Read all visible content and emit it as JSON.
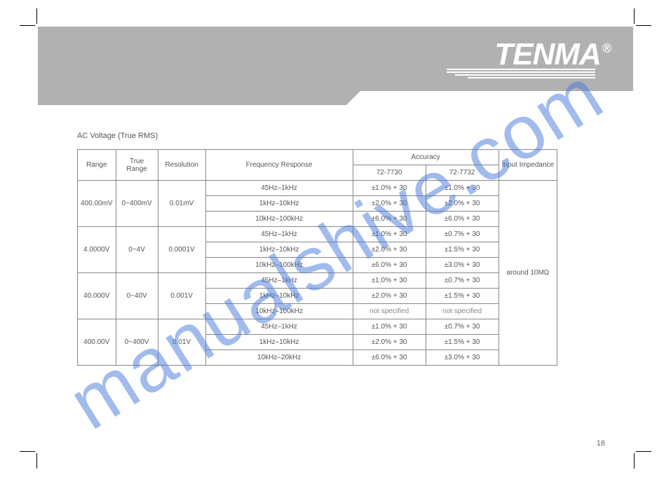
{
  "brand": {
    "name": "TENMA",
    "reg": "®"
  },
  "section_title": "AC Voltage (True RMS)",
  "page_number": "16",
  "watermark": "manualshive.com",
  "colors": {
    "header_gray": "#b1b1b1",
    "border": "#888888",
    "text": "#555555",
    "watermark": "rgba(70,120,220,0.5)"
  },
  "table": {
    "head": {
      "range": "Range",
      "true_range": "True Range",
      "resolution": "Resolution",
      "freq": "Frequency Response",
      "acc1": "Accuracy",
      "acc2": "Accuracy",
      "imp": "Input Impedance"
    },
    "subhead": {
      "a": "72-7730",
      "b": "72-7732"
    },
    "groups": [
      {
        "range": "400.00mV",
        "true_range": "0~400mV",
        "res": "0.01mV",
        "rows": [
          {
            "freq": "45Hz–1kHz",
            "acc1": "±1.0% + 30",
            "acc2": "±1.0% + 30"
          },
          {
            "freq": "1kHz–10kHz",
            "acc1": "±2.0% + 30",
            "acc2": "±2.0% + 30"
          },
          {
            "freq": "10kHz–100kHz",
            "acc1": "±6.0% + 30",
            "acc2": "±6.0% + 30"
          }
        ]
      },
      {
        "range": "4.0000V",
        "true_range": "0~4V",
        "res": "0.0001V",
        "rows": [
          {
            "freq": "45Hz–1kHz",
            "acc1": "±1.0% + 30",
            "acc2": "±0.7% + 30"
          },
          {
            "freq": "1kHz–10kHz",
            "acc1": "±2.0% + 30",
            "acc2": "±1.5% + 30"
          },
          {
            "freq": "10kHz–100kHz",
            "acc1": "±6.0% + 30",
            "acc2": "±3.0% + 30"
          }
        ]
      },
      {
        "range": "40.000V",
        "true_range": "0~40V",
        "res": "0.001V",
        "rows": [
          {
            "freq": "45Hz–1kHz",
            "acc1": "±1.0% + 30",
            "acc2": "±0.7% + 30"
          },
          {
            "freq": "1kHz–10kHz",
            "acc1": "±2.0% + 30",
            "acc2": "±1.5% + 30"
          },
          {
            "freq": "10kHz–100kHz",
            "acc1": "not specified",
            "acc2": "not specified"
          }
        ]
      },
      {
        "range": "400.00V",
        "true_range": "0~400V",
        "res": "0.01V",
        "rows": [
          {
            "freq": "45Hz–1kHz",
            "acc1": "±1.0% + 30",
            "acc2": "±0.7% + 30"
          },
          {
            "freq": "1kHz–10kHz",
            "acc1": "±2.0% + 30",
            "acc2": "±1.5% + 30"
          },
          {
            "freq": "10kHz–20kHz",
            "acc1": "±6.0% + 30",
            "acc2": "±3.0% + 30"
          }
        ]
      }
    ],
    "impedance": "around 10MΩ"
  }
}
